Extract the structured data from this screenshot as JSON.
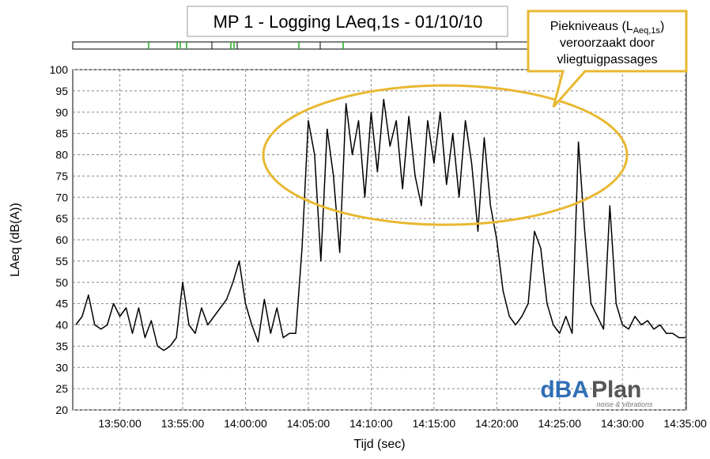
{
  "chart_data": {
    "type": "line",
    "title": "MP 1 - Logging LAeq,1s - 01/10/10",
    "x_label": "Tijd (sec)",
    "y_label": "LAeq (dB(A))",
    "annotation": {
      "line1_start": "Piekniveaus (L",
      "line1_sub": "Aeq,1s",
      "line1_end": ")",
      "line2": "veroorzaakt door",
      "line3": "vliegtuigpassages"
    },
    "logo": {
      "part1": "dBA",
      "part2": "Plan",
      "tagline": "noise & vibrations"
    },
    "x": [
      "13:46:30",
      "13:47:00",
      "13:47:30",
      "13:48:00",
      "13:48:30",
      "13:49:00",
      "13:49:30",
      "13:50:00",
      "13:50:30",
      "13:51:00",
      "13:51:30",
      "13:52:00",
      "13:52:30",
      "13:53:00",
      "13:53:30",
      "13:54:00",
      "13:54:30",
      "13:55:00",
      "13:55:30",
      "13:56:00",
      "13:56:30",
      "13:57:00",
      "13:57:30",
      "13:58:00",
      "13:58:30",
      "13:59:00",
      "13:59:30",
      "14:00:00",
      "14:00:30",
      "14:01:00",
      "14:01:30",
      "14:02:00",
      "14:02:30",
      "14:03:00",
      "14:03:30",
      "14:04:00",
      "14:04:30",
      "14:05:00",
      "14:05:30",
      "14:06:00",
      "14:06:30",
      "14:07:00",
      "14:07:30",
      "14:08:00",
      "14:08:30",
      "14:09:00",
      "14:09:30",
      "14:10:00",
      "14:10:30",
      "14:11:00",
      "14:11:30",
      "14:12:00",
      "14:12:30",
      "14:13:00",
      "14:13:30",
      "14:14:00",
      "14:14:30",
      "14:15:00",
      "14:15:30",
      "14:16:00",
      "14:16:30",
      "14:17:00",
      "14:17:30",
      "14:18:00",
      "14:18:30",
      "14:19:00",
      "14:19:30",
      "14:20:00",
      "14:20:30",
      "14:21:00",
      "14:21:30",
      "14:22:00",
      "14:22:30",
      "14:23:00",
      "14:23:30",
      "14:24:00",
      "14:24:30",
      "14:25:00",
      "14:25:30",
      "14:26:00",
      "14:26:30",
      "14:27:00",
      "14:27:30",
      "14:28:00",
      "14:28:30",
      "14:29:00",
      "14:29:30",
      "14:30:00",
      "14:30:30",
      "14:31:00",
      "14:31:30",
      "14:32:00",
      "14:32:30",
      "14:33:00",
      "14:33:30",
      "14:34:00",
      "14:34:30",
      "14:35:00"
    ],
    "series": [
      {
        "name": "LAeq,1s",
        "color": "#000000",
        "values": [
          40,
          42,
          47,
          40,
          39,
          40,
          45,
          42,
          44,
          38,
          44,
          37,
          41,
          35,
          34,
          35,
          37,
          50,
          40,
          38,
          44,
          40,
          42,
          44,
          46,
          50,
          55,
          45,
          40,
          36,
          46,
          38,
          44,
          37,
          38,
          38,
          58,
          88,
          80,
          55,
          86,
          75,
          57,
          92,
          80,
          88,
          70,
          90,
          76,
          93,
          82,
          88,
          72,
          89,
          75,
          68,
          88,
          78,
          90,
          73,
          85,
          70,
          88,
          78,
          62,
          84,
          68,
          60,
          48,
          42,
          40,
          42,
          45,
          62,
          58,
          45,
          40,
          38,
          42,
          38,
          83,
          62,
          45,
          42,
          39,
          68,
          45,
          40,
          39,
          42,
          40,
          41,
          39,
          40,
          38,
          38,
          37,
          37
        ]
      }
    ],
    "xlim": [
      "13:46:15",
      "14:35:05"
    ],
    "xticks": [
      "13:50:00",
      "13:55:00",
      "14:00:00",
      "14:05:00",
      "14:10:00",
      "14:15:00",
      "14:20:00",
      "14:25:00",
      "14:30:00",
      "14:35:00"
    ],
    "ylim": [
      20,
      100
    ],
    "yticks": [
      20,
      25,
      30,
      35,
      40,
      45,
      50,
      55,
      60,
      65,
      70,
      75,
      80,
      85,
      90,
      95,
      100
    ],
    "grid": true
  }
}
